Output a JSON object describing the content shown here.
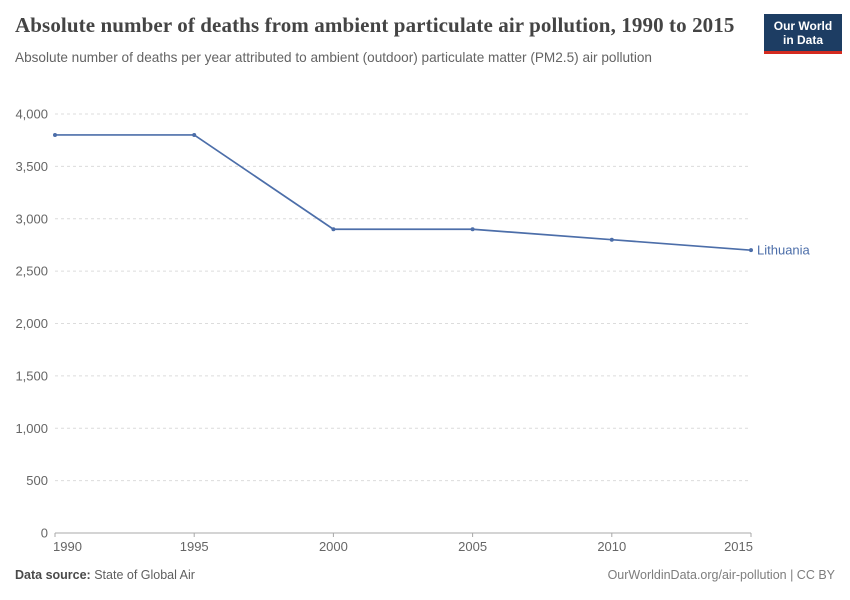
{
  "header": {
    "title": "Absolute number of deaths from ambient particulate air pollution, 1990 to 2015",
    "subtitle": "Absolute number of deaths per year attributed to ambient (outdoor) particulate matter (PM2.5) air pollution",
    "logo": {
      "line1": "Our World",
      "line2": "in Data",
      "bg_color": "#1d3d63",
      "accent_color": "#d42b20"
    }
  },
  "chart_data": {
    "type": "line",
    "title": "Absolute number of deaths from ambient particulate air pollution, 1990 to 2015",
    "x": [
      1990,
      1995,
      2000,
      2005,
      2010,
      2015
    ],
    "x_tick_labels": [
      "1990",
      "1995",
      "2000",
      "2005",
      "2010",
      "2015"
    ],
    "series": [
      {
        "name": "Lithuania",
        "values": [
          3800,
          3800,
          2900,
          2900,
          2800,
          2700
        ],
        "color": "#4c6ea9"
      }
    ],
    "ylim": [
      0,
      4000
    ],
    "yticks": [
      0,
      500,
      1000,
      1500,
      2000,
      2500,
      3000,
      3500,
      4000
    ],
    "ytick_labels": [
      "0",
      "500",
      "1,000",
      "1,500",
      "2,000",
      "2,500",
      "3,000",
      "3,500",
      "4,000"
    ],
    "grid": "horizontal-dashed",
    "legend_position": "end-of-line-label",
    "colors": {
      "grid": "#dcdcdc",
      "axis": "#a8a8a8",
      "tick_text": "#666666"
    }
  },
  "footer": {
    "source_label": "Data source:",
    "source_value": " State of Global Air",
    "link": "OurWorldinData.org/air-pollution | CC BY"
  }
}
